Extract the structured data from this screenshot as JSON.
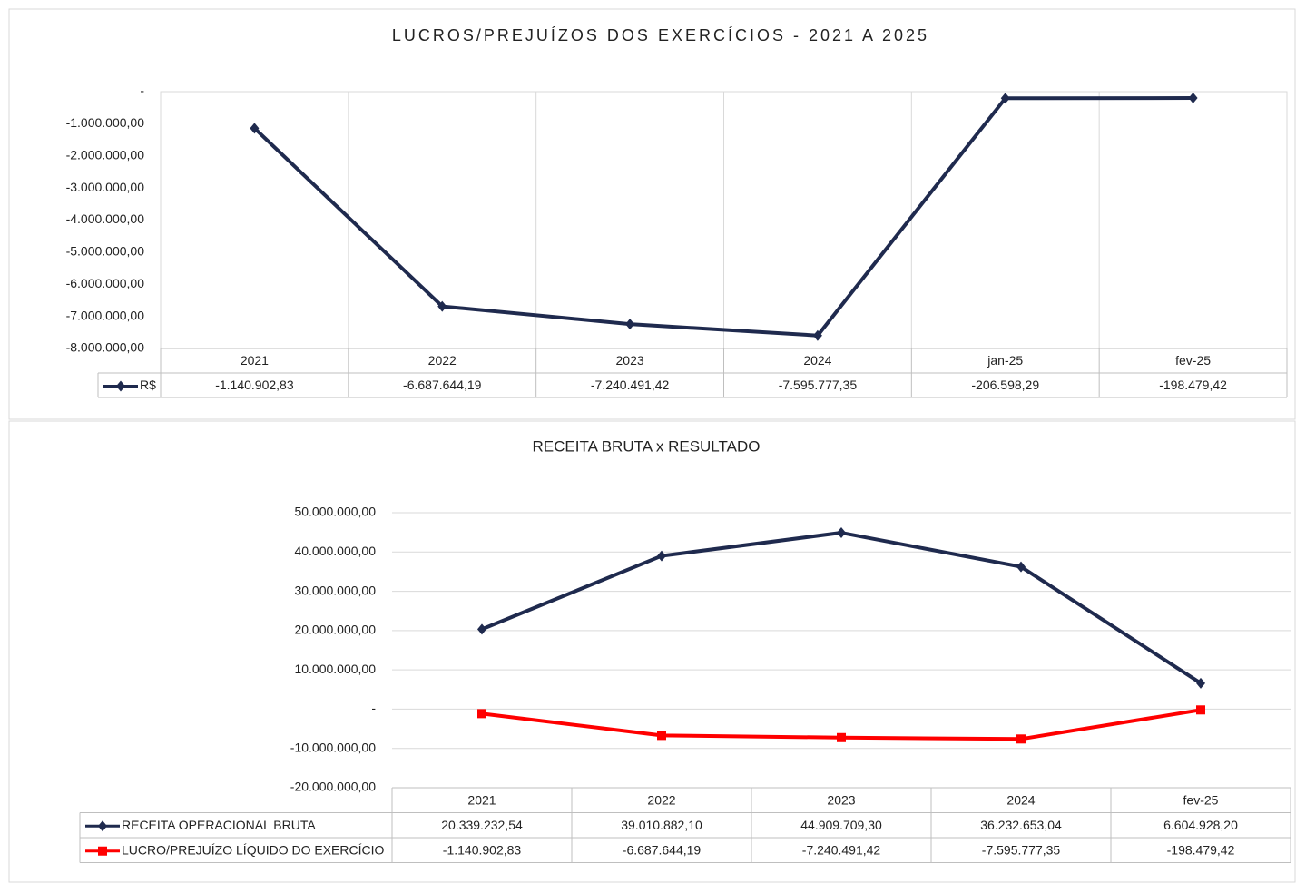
{
  "chart_data": [
    {
      "type": "line",
      "title": "LUCROS/PREJUÍZOS DOS EXERCÍCIOS - 2021 A 2025",
      "categories": [
        "2021",
        "2022",
        "2023",
        "2024",
        "jan-25",
        "fev-25"
      ],
      "series": [
        {
          "name": "R$",
          "color": "#1f2a4e",
          "values": [
            -1140902.83,
            -6687644.19,
            -7240491.42,
            -7595777.35,
            -206598.29,
            -198479.42
          ],
          "value_labels": [
            "-1.140.902,83",
            "-6.687.644,19",
            "-7.240.491,42",
            "-7.595.777,35",
            "-206.598,29",
            "-198.479,42"
          ]
        }
      ],
      "ylim": [
        -8000000,
        0
      ],
      "yticks": [
        {
          "value": 0,
          "label": "-"
        },
        {
          "value": -1000000,
          "label": "-1.000.000,00"
        },
        {
          "value": -2000000,
          "label": "-2.000.000,00"
        },
        {
          "value": -3000000,
          "label": "-3.000.000,00"
        },
        {
          "value": -4000000,
          "label": "-4.000.000,00"
        },
        {
          "value": -5000000,
          "label": "-5.000.000,00"
        },
        {
          "value": -6000000,
          "label": "-6.000.000,00"
        },
        {
          "value": -7000000,
          "label": "-7.000.000,00"
        },
        {
          "value": -8000000,
          "label": "-8.000.000,00"
        }
      ],
      "grid": "vertical"
    },
    {
      "type": "line",
      "title": "RECEITA BRUTA x RESULTADO",
      "categories": [
        "2021",
        "2022",
        "2023",
        "2024",
        "fev-25"
      ],
      "series": [
        {
          "name": "RECEITA OPERACIONAL BRUTA",
          "color": "#1f2a4e",
          "marker": "diamond",
          "values": [
            20339232.54,
            39010882.1,
            44909709.3,
            36232653.04,
            6604928.2
          ],
          "value_labels": [
            "20.339.232,54",
            "39.010.882,10",
            "44.909.709,30",
            "36.232.653,04",
            "6.604.928,20"
          ]
        },
        {
          "name": "LUCRO/PREJUÍZO LÍQUIDO DO EXERCÍCIO",
          "color": "#ff0000",
          "marker": "square",
          "values": [
            -1140902.83,
            -6687644.19,
            -7240491.42,
            -7595777.35,
            -198479.42
          ],
          "value_labels": [
            "-1.140.902,83",
            "-6.687.644,19",
            "-7.240.491,42",
            "-7.595.777,35",
            "-198.479,42"
          ]
        }
      ],
      "ylim": [
        -20000000,
        50000000
      ],
      "yticks": [
        {
          "value": 50000000,
          "label": "50.000.000,00"
        },
        {
          "value": 40000000,
          "label": "40.000.000,00"
        },
        {
          "value": 30000000,
          "label": "30.000.000,00"
        },
        {
          "value": 20000000,
          "label": "20.000.000,00"
        },
        {
          "value": 10000000,
          "label": "10.000.000,00"
        },
        {
          "value": 0,
          "label": "-"
        },
        {
          "value": -10000000,
          "label": "-10.000.000,00"
        },
        {
          "value": -20000000,
          "label": "-20.000.000,00"
        }
      ],
      "grid": "horizontal"
    }
  ]
}
